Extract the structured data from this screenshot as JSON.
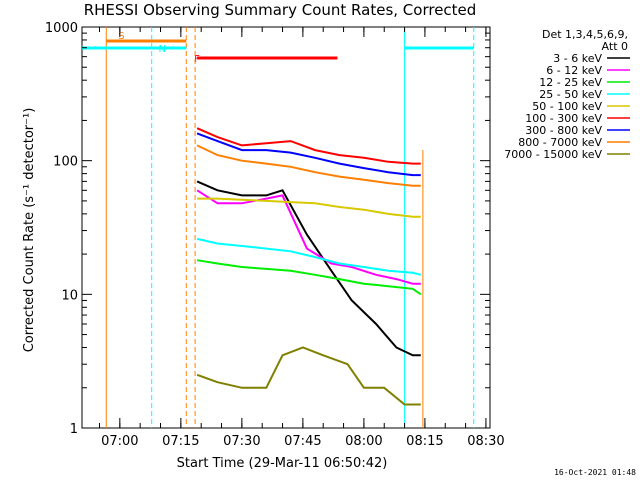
{
  "footer": "16-Oct-2021 01:48",
  "colors": {
    "black": "#000000",
    "magenta": "#ff00ff",
    "green": "#00ee00",
    "cyan": "#00ffff",
    "gold": "#d8c800",
    "red": "#ff0000",
    "blue": "#0000ff",
    "orange": "#ff7f00",
    "olive": "#808000"
  },
  "chart_data": {
    "type": "line",
    "title": "RHESSI Observing Summary Count Rates, Corrected",
    "xlabel": "Start Time (29-Mar-11 06:50:42)",
    "ylabel": "Corrected Count Rate (s⁻¹ detector⁻¹)",
    "y_scale": "log",
    "ylim": [
      1,
      1000
    ],
    "xlim": [
      "06:50:42",
      "08:31:00"
    ],
    "x_ticks": [
      "07:00",
      "07:15",
      "07:30",
      "07:45",
      "08:00",
      "08:15",
      "08:30"
    ],
    "y_ticks": [
      "1",
      "10",
      "100",
      "1000"
    ],
    "legend_header": [
      "Det 1,3,4,5,6,9,",
      "Att 0"
    ],
    "legend_position": "right",
    "series": [
      {
        "name": "3 - 6 keV",
        "color": "#000000",
        "x": [
          "07:19",
          "07:24",
          "07:30",
          "07:36",
          "07:40",
          "07:46",
          "07:52",
          "07:57",
          "08:03",
          "08:08",
          "08:12",
          "08:14"
        ],
        "values": [
          70,
          60,
          55,
          55,
          60,
          28,
          15,
          9,
          6,
          4,
          3.5,
          3.5
        ]
      },
      {
        "name": "6 - 12 keV",
        "color": "#ff00ff",
        "x": [
          "07:19",
          "07:24",
          "07:30",
          "07:36",
          "07:40",
          "07:46",
          "07:52",
          "07:57",
          "08:03",
          "08:08",
          "08:12",
          "08:14"
        ],
        "values": [
          60,
          48,
          48,
          52,
          55,
          22,
          17,
          16,
          14,
          13,
          12,
          12
        ]
      },
      {
        "name": "12 - 25 keV",
        "color": "#00ee00",
        "x": [
          "07:19",
          "07:24",
          "07:30",
          "07:36",
          "07:42",
          "07:48",
          "07:54",
          "08:00",
          "08:06",
          "08:12",
          "08:14"
        ],
        "values": [
          18,
          17,
          16,
          15.5,
          15,
          14,
          13,
          12,
          11.5,
          11,
          10
        ]
      },
      {
        "name": "25 - 50 keV",
        "color": "#00ffff",
        "x": [
          "07:19",
          "07:24",
          "07:30",
          "07:36",
          "07:42",
          "07:48",
          "07:54",
          "08:00",
          "08:06",
          "08:12",
          "08:14"
        ],
        "values": [
          26,
          24,
          23,
          22,
          21,
          19,
          17,
          16,
          15,
          14.5,
          14
        ]
      },
      {
        "name": "50 - 100 keV",
        "color": "#d8c800",
        "x": [
          "07:19",
          "07:24",
          "07:30",
          "07:36",
          "07:42",
          "07:48",
          "07:54",
          "08:00",
          "08:06",
          "08:12",
          "08:14"
        ],
        "values": [
          52,
          52,
          51,
          50,
          49,
          48,
          45,
          43,
          40,
          38,
          38
        ]
      },
      {
        "name": "100 - 300 keV",
        "color": "#ff0000",
        "x": [
          "07:19",
          "07:24",
          "07:30",
          "07:36",
          "07:42",
          "07:48",
          "07:54",
          "08:00",
          "08:06",
          "08:12",
          "08:14"
        ],
        "values": [
          175,
          150,
          130,
          135,
          140,
          120,
          110,
          105,
          98,
          95,
          95
        ]
      },
      {
        "name": "300 - 800 keV",
        "color": "#0000ff",
        "x": [
          "07:19",
          "07:24",
          "07:30",
          "07:36",
          "07:42",
          "07:48",
          "07:54",
          "08:00",
          "08:06",
          "08:12",
          "08:14"
        ],
        "values": [
          160,
          140,
          120,
          120,
          115,
          105,
          95,
          88,
          82,
          78,
          78
        ]
      },
      {
        "name": "800 - 7000 keV",
        "color": "#ff7f00",
        "x": [
          "07:19",
          "07:24",
          "07:30",
          "07:36",
          "07:42",
          "07:48",
          "07:54",
          "08:00",
          "08:06",
          "08:12",
          "08:14"
        ],
        "values": [
          130,
          110,
          100,
          95,
          90,
          82,
          76,
          72,
          68,
          65,
          65
        ]
      },
      {
        "name": "7000 - 15000 keV",
        "color": "#808000",
        "x": [
          "07:19",
          "07:24",
          "07:30",
          "07:36",
          "07:40",
          "07:45",
          "07:50",
          "07:56",
          "08:00",
          "08:05",
          "08:10",
          "08:14"
        ],
        "values": [
          2.5,
          2.2,
          2.0,
          2.0,
          3.5,
          4.0,
          3.5,
          3.0,
          2.0,
          2.0,
          1.5,
          1.5
        ]
      }
    ],
    "markers": [
      {
        "label": "S",
        "color": "#ff7f00",
        "x": [
          "06:56:40",
          "07:16:20"
        ]
      },
      {
        "label": "N",
        "color": "#00ffff",
        "x": [
          "06:50:42",
          "07:16:20"
        ]
      },
      {
        "label": "F",
        "color": "#ff0000",
        "x": [
          "07:19:00",
          "07:53:30"
        ]
      },
      {
        "label": "",
        "color": "#00ffff",
        "x": [
          "08:10:00",
          "08:27:00"
        ]
      }
    ]
  }
}
